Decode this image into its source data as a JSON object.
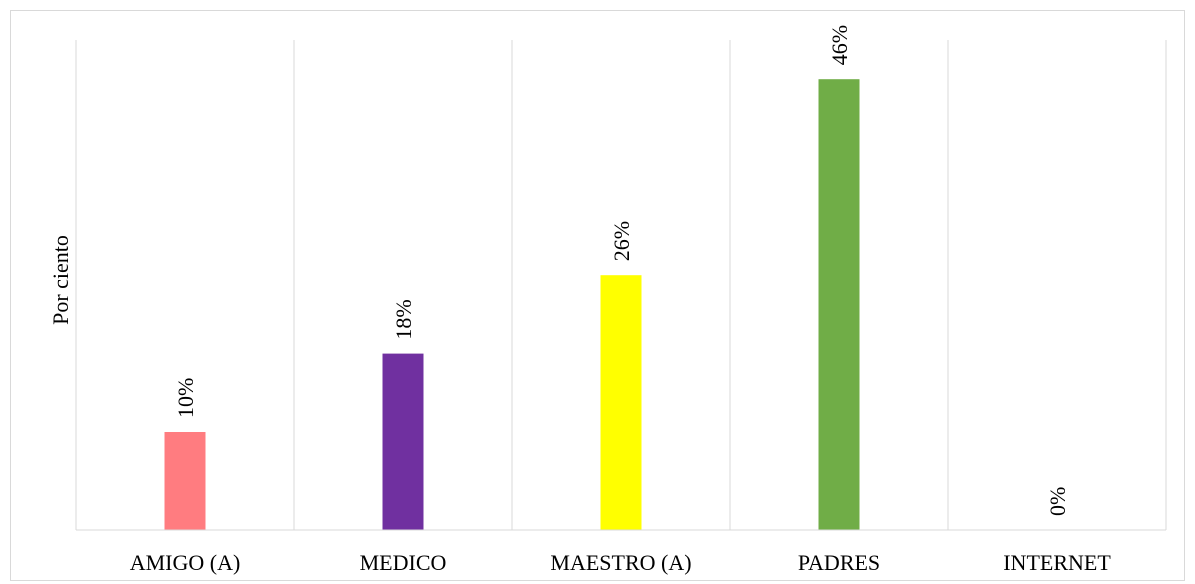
{
  "chart_data": {
    "type": "bar",
    "categories": [
      "AMIGO (A)",
      "MEDICO",
      "MAESTRO (A)",
      "PADRES",
      "INTERNET"
    ],
    "values": [
      10,
      18,
      26,
      46,
      0
    ],
    "data_labels": [
      "10%",
      "18%",
      "26%",
      "46%",
      "0%"
    ],
    "bar_colors": [
      "#ff7c80",
      "#7030a0",
      "#ffff00",
      "#70ad47",
      "#5b9bd5"
    ],
    "title": "",
    "xlabel": "",
    "ylabel": "Por ciento",
    "ylim": [
      0,
      50
    ],
    "grid": "vertical-category-separators",
    "legend": "none"
  }
}
